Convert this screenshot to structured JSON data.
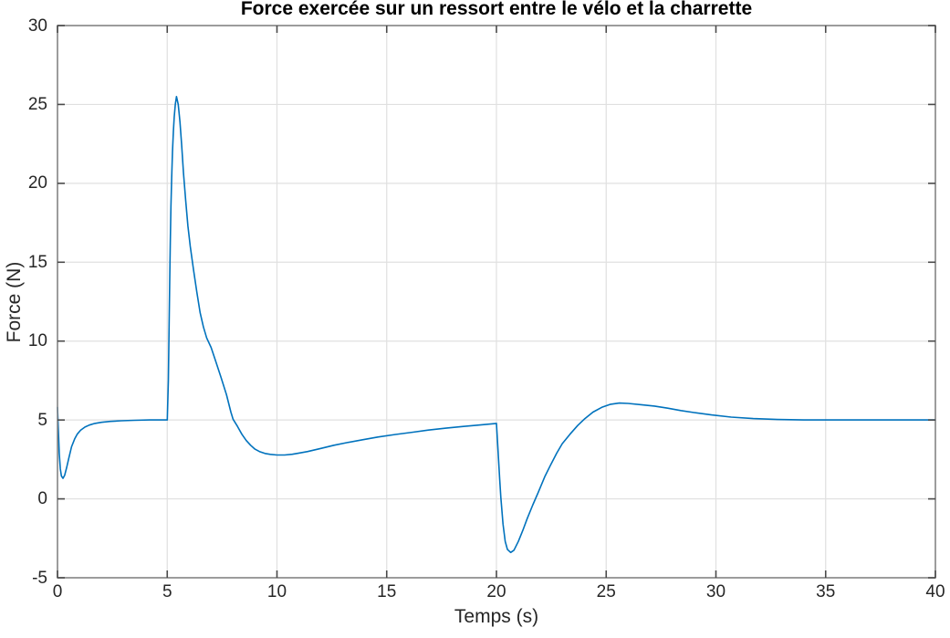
{
  "figure": {
    "background": "#ffffff"
  },
  "chart_data": {
    "type": "line",
    "title": "Force exercée sur un ressort entre le vélo et la charrette",
    "xlabel": "Temps (s)",
    "ylabel": "Force (N)",
    "xlim": [
      0,
      40
    ],
    "ylim": [
      -5,
      30
    ],
    "x_ticks": [
      0,
      5,
      10,
      15,
      20,
      25,
      30,
      35,
      40
    ],
    "y_ticks": [
      -5,
      0,
      5,
      10,
      15,
      20,
      25,
      30
    ],
    "grid": true,
    "legend": "none",
    "line_color": "#0072BD",
    "colors": {
      "grid": "#e0e0e0",
      "axes_box": "#848484",
      "tick": "#4a4a4a",
      "tick_label": "#262626",
      "axis_label": "#262626",
      "title": "#000000"
    },
    "series": [
      {
        "points": [
          [
            0,
            5.8
          ],
          [
            0.04,
            4.3
          ],
          [
            0.08,
            2.9
          ],
          [
            0.13,
            1.9
          ],
          [
            0.18,
            1.45
          ],
          [
            0.25,
            1.3
          ],
          [
            0.33,
            1.5
          ],
          [
            0.42,
            2.0
          ],
          [
            0.52,
            2.6
          ],
          [
            0.64,
            3.3
          ],
          [
            0.78,
            3.8
          ],
          [
            0.9,
            4.1
          ],
          [
            1.05,
            4.35
          ],
          [
            1.25,
            4.55
          ],
          [
            1.45,
            4.68
          ],
          [
            1.7,
            4.78
          ],
          [
            2.0,
            4.85
          ],
          [
            2.4,
            4.91
          ],
          [
            2.9,
            4.95
          ],
          [
            3.5,
            4.98
          ],
          [
            4.2,
            5.0
          ],
          [
            5.0,
            5.0
          ],
          [
            5.05,
            7.5
          ],
          [
            5.08,
            10.5
          ],
          [
            5.11,
            13.5
          ],
          [
            5.14,
            16.2
          ],
          [
            5.17,
            18.5
          ],
          [
            5.2,
            20.3
          ],
          [
            5.24,
            22.0
          ],
          [
            5.28,
            23.3
          ],
          [
            5.32,
            24.2
          ],
          [
            5.37,
            25.0
          ],
          [
            5.42,
            25.5
          ],
          [
            5.5,
            25.0
          ],
          [
            5.58,
            23.9
          ],
          [
            5.66,
            22.4
          ],
          [
            5.74,
            20.7
          ],
          [
            5.84,
            18.9
          ],
          [
            5.94,
            17.3
          ],
          [
            6.05,
            16.0
          ],
          [
            6.2,
            14.5
          ],
          [
            6.35,
            13.1
          ],
          [
            6.5,
            11.8
          ],
          [
            6.65,
            10.9
          ],
          [
            6.8,
            10.2
          ],
          [
            7.0,
            9.6
          ],
          [
            7.2,
            8.75
          ],
          [
            7.45,
            7.7
          ],
          [
            7.7,
            6.6
          ],
          [
            7.9,
            5.5
          ],
          [
            8.0,
            5.05
          ],
          [
            8.2,
            4.6
          ],
          [
            8.4,
            4.1
          ],
          [
            8.6,
            3.7
          ],
          [
            8.8,
            3.4
          ],
          [
            9.0,
            3.15
          ],
          [
            9.2,
            3.0
          ],
          [
            9.45,
            2.88
          ],
          [
            9.7,
            2.82
          ],
          [
            10.0,
            2.78
          ],
          [
            10.35,
            2.78
          ],
          [
            10.7,
            2.83
          ],
          [
            11.0,
            2.9
          ],
          [
            11.4,
            3.0
          ],
          [
            12.0,
            3.2
          ],
          [
            12.6,
            3.4
          ],
          [
            13.2,
            3.57
          ],
          [
            13.9,
            3.75
          ],
          [
            14.6,
            3.92
          ],
          [
            15.4,
            4.08
          ],
          [
            16.2,
            4.23
          ],
          [
            16.9,
            4.36
          ],
          [
            17.7,
            4.48
          ],
          [
            18.5,
            4.59
          ],
          [
            19.2,
            4.68
          ],
          [
            20.0,
            4.78
          ],
          [
            20.05,
            3.6
          ],
          [
            20.1,
            2.4
          ],
          [
            20.15,
            1.2
          ],
          [
            20.2,
            0.1
          ],
          [
            20.3,
            -1.6
          ],
          [
            20.4,
            -2.7
          ],
          [
            20.5,
            -3.2
          ],
          [
            20.65,
            -3.4
          ],
          [
            20.8,
            -3.25
          ],
          [
            21.0,
            -2.7
          ],
          [
            21.2,
            -2.0
          ],
          [
            21.4,
            -1.25
          ],
          [
            21.65,
            -0.4
          ],
          [
            21.9,
            0.4
          ],
          [
            22.2,
            1.4
          ],
          [
            22.45,
            2.1
          ],
          [
            22.75,
            2.9
          ],
          [
            23.0,
            3.5
          ],
          [
            23.35,
            4.1
          ],
          [
            23.7,
            4.65
          ],
          [
            24.0,
            5.05
          ],
          [
            24.4,
            5.5
          ],
          [
            24.8,
            5.8
          ],
          [
            25.2,
            6.0
          ],
          [
            25.6,
            6.07
          ],
          [
            26.0,
            6.05
          ],
          [
            26.6,
            5.97
          ],
          [
            27.2,
            5.88
          ],
          [
            27.8,
            5.75
          ],
          [
            28.4,
            5.6
          ],
          [
            29.0,
            5.47
          ],
          [
            29.8,
            5.32
          ],
          [
            30.7,
            5.18
          ],
          [
            31.7,
            5.09
          ],
          [
            32.8,
            5.03
          ],
          [
            34.0,
            5.0
          ],
          [
            36.0,
            5.0
          ],
          [
            38.0,
            5.0
          ],
          [
            40.0,
            5.0
          ]
        ]
      }
    ]
  }
}
